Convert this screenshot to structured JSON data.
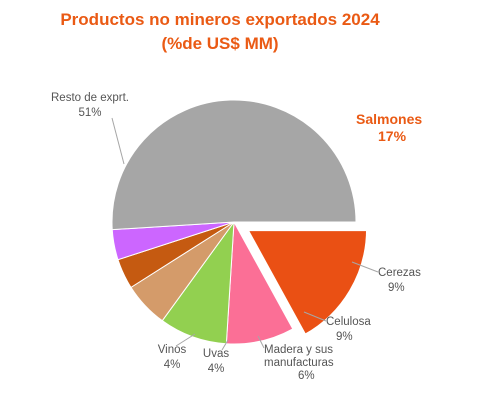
{
  "title_line1": "Productos no mineros exportados 2024",
  "title_line2": "(%de US$ MM)",
  "chart_data": {
    "type": "pie",
    "title": "Productos no mineros exportados 2024 (%de US$ MM)",
    "slices": [
      {
        "label": "Salmones",
        "value_label": "17%",
        "value": 17,
        "color": "#ea5014",
        "exploded": true
      },
      {
        "label": "Cerezas",
        "value_label": "9%",
        "value": 9,
        "color": "#fb6f96"
      },
      {
        "label": "Celulosa",
        "value_label": "9%",
        "value": 9,
        "color": "#92d050"
      },
      {
        "label": "Madera y sus manufacturas",
        "value_label": "6%",
        "value": 6,
        "color": "#d49b6a"
      },
      {
        "label": "Uvas",
        "value_label": "4%",
        "value": 4,
        "color": "#c55a11"
      },
      {
        "label": "Vinos",
        "value_label": "4%",
        "value": 4,
        "color": "#cc66ff"
      },
      {
        "label": "Resto de exprt.",
        "value_label": "51%",
        "value": 51,
        "color": "#a6a6a6"
      }
    ]
  }
}
